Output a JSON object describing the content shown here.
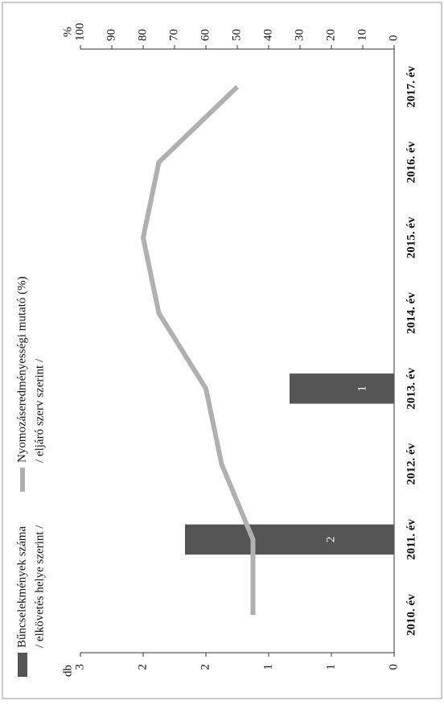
{
  "chart_data": {
    "type": "bar_line",
    "categories": [
      "2010. év",
      "2011. év",
      "2012. év",
      "2013. év",
      "2014. év",
      "2015. év",
      "2016. év",
      "2017. év"
    ],
    "y_label": "db",
    "y2_label": "%",
    "series": [
      {
        "name": "Bűncselekmények száma",
        "subtitle": "/ elkövetés helye szerint /",
        "color": "#555555",
        "values": [
          0,
          2,
          0,
          1,
          0,
          0,
          0,
          0
        ],
        "value_labels": [
          null,
          "2",
          null,
          "1",
          null,
          null,
          null,
          null
        ]
      },
      {
        "name": "Nyomozáseredményességi mutató (%)",
        "subtitle": "/ eljáró szerv szerint /",
        "color": "#b0b0b0",
        "axis": "y2",
        "values": [
          45,
          45,
          55,
          60,
          75,
          80,
          75,
          50
        ]
      }
    ],
    "ylim": [
      0,
      3
    ],
    "yticks": [
      0,
      {
        "value": 0.6,
        "label": "1"
      },
      {
        "value": 1.2,
        "label": "1"
      },
      {
        "value": 1.8,
        "label": "2"
      },
      {
        "value": 2.4,
        "label": "2"
      },
      3
    ],
    "y2lim": [
      0,
      100
    ],
    "y2ticks": [
      0,
      10,
      20,
      30,
      40,
      50,
      60,
      70,
      80,
      90,
      100
    ]
  }
}
